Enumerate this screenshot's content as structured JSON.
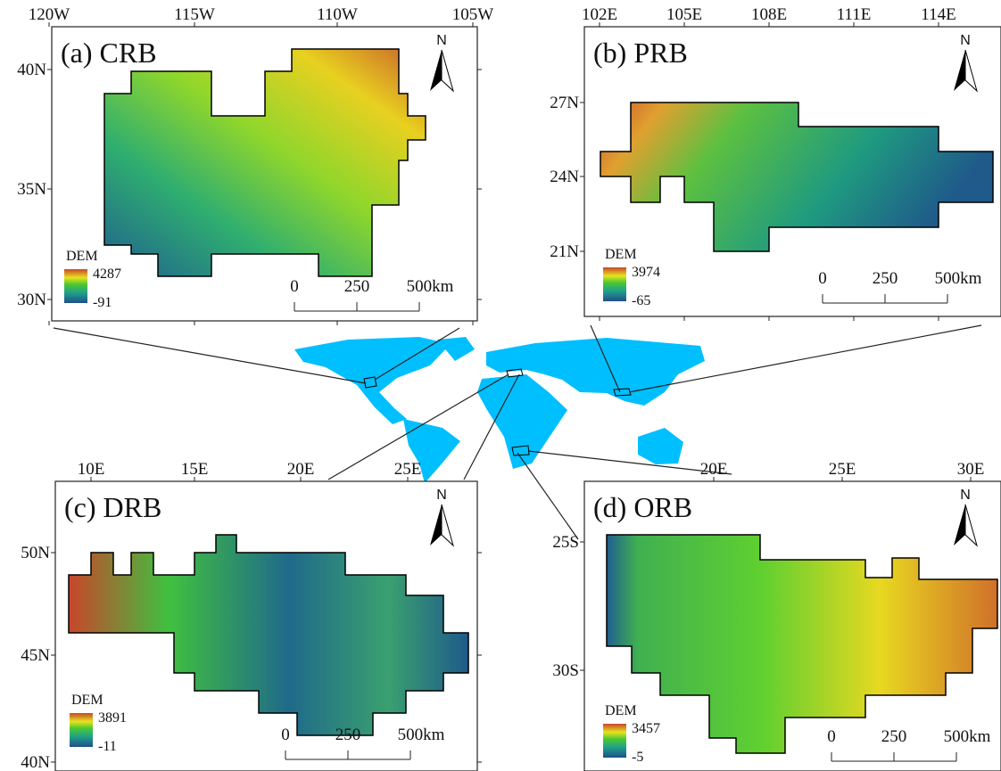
{
  "panels": [
    {
      "title": "(a) CRB",
      "north": "N",
      "lon_ticks": [
        "120W",
        "115W",
        "110W",
        "105W"
      ],
      "lat_ticks": [
        "40N",
        "35N",
        "30N"
      ],
      "legend": {
        "title": "DEM",
        "max": "4287",
        "min": "-91"
      },
      "scale": [
        "0",
        "250",
        "500km"
      ]
    },
    {
      "title": "(b) PRB",
      "north": "N",
      "lon_ticks": [
        "102E",
        "105E",
        "108E",
        "111E",
        "114E"
      ],
      "lat_ticks": [
        "27N",
        "24N",
        "21N"
      ],
      "legend": {
        "title": "DEM",
        "max": "3974",
        "min": "-65"
      },
      "scale": [
        "0",
        "250",
        "500km"
      ]
    },
    {
      "title": "(c) DRB",
      "north": "N",
      "lon_ticks": [
        "10E",
        "15E",
        "20E",
        "25E"
      ],
      "lat_ticks": [
        "50N",
        "45N",
        "40N"
      ],
      "legend": {
        "title": "DEM",
        "max": "3891",
        "min": "-11"
      },
      "scale": [
        "0",
        "250",
        "500km"
      ]
    },
    {
      "title": "(d) ORB",
      "north": "N",
      "lon_ticks": [
        "20E",
        "25E",
        "30E"
      ],
      "lat_ticks": [
        "25S",
        "30S"
      ],
      "legend": {
        "title": "DEM",
        "max": "3457",
        "min": "-5"
      },
      "scale": [
        "0",
        "250",
        "500km"
      ]
    }
  ]
}
